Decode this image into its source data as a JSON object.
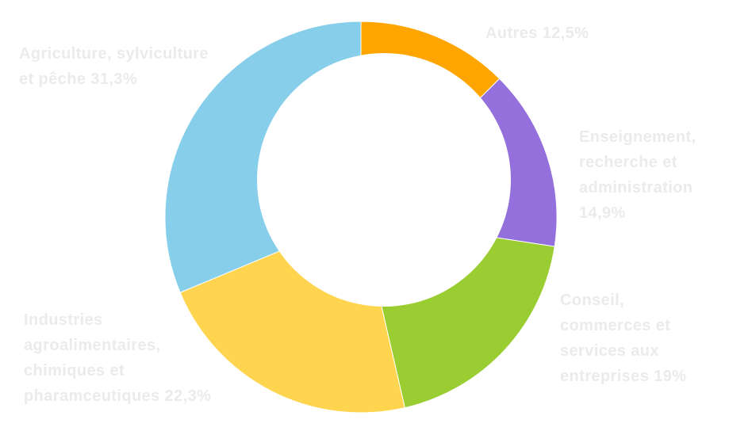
{
  "chart_data": {
    "type": "pie",
    "variant": "donut",
    "start_angle_deg": 0,
    "direction": "clockwise",
    "slices": [
      {
        "name": "Autres",
        "value": 12.5,
        "color": "#FFA500",
        "label_lines": [
          "Autres 12,5%"
        ]
      },
      {
        "name": "Enseignement, recherche et administration",
        "value": 14.9,
        "color": "#9370DB",
        "label_lines": [
          "Enseignement,",
          "recherche et",
          "administration",
          "14,9%"
        ]
      },
      {
        "name": "Conseil, commerces et services aux entreprises",
        "value": 19,
        "color": "#9ACD32",
        "label_lines": [
          "Conseil,",
          "commerces et",
          "services aux",
          "entreprises 19%"
        ]
      },
      {
        "name": "Industries agroalimentaires, chimiques et pharamceutiques",
        "value": 22.3,
        "color": "#FFD54F",
        "label_lines": [
          "Industries",
          "agroalimentaires,",
          "chimiques et",
          "pharamceutiques 22,3%"
        ]
      },
      {
        "name": "Agriculture, sylviculture et pêche",
        "value": 31.3,
        "color": "#87CEEB",
        "label_lines": [
          "Agriculture, sylviculture",
          "et pêche 31,3%"
        ]
      }
    ]
  }
}
